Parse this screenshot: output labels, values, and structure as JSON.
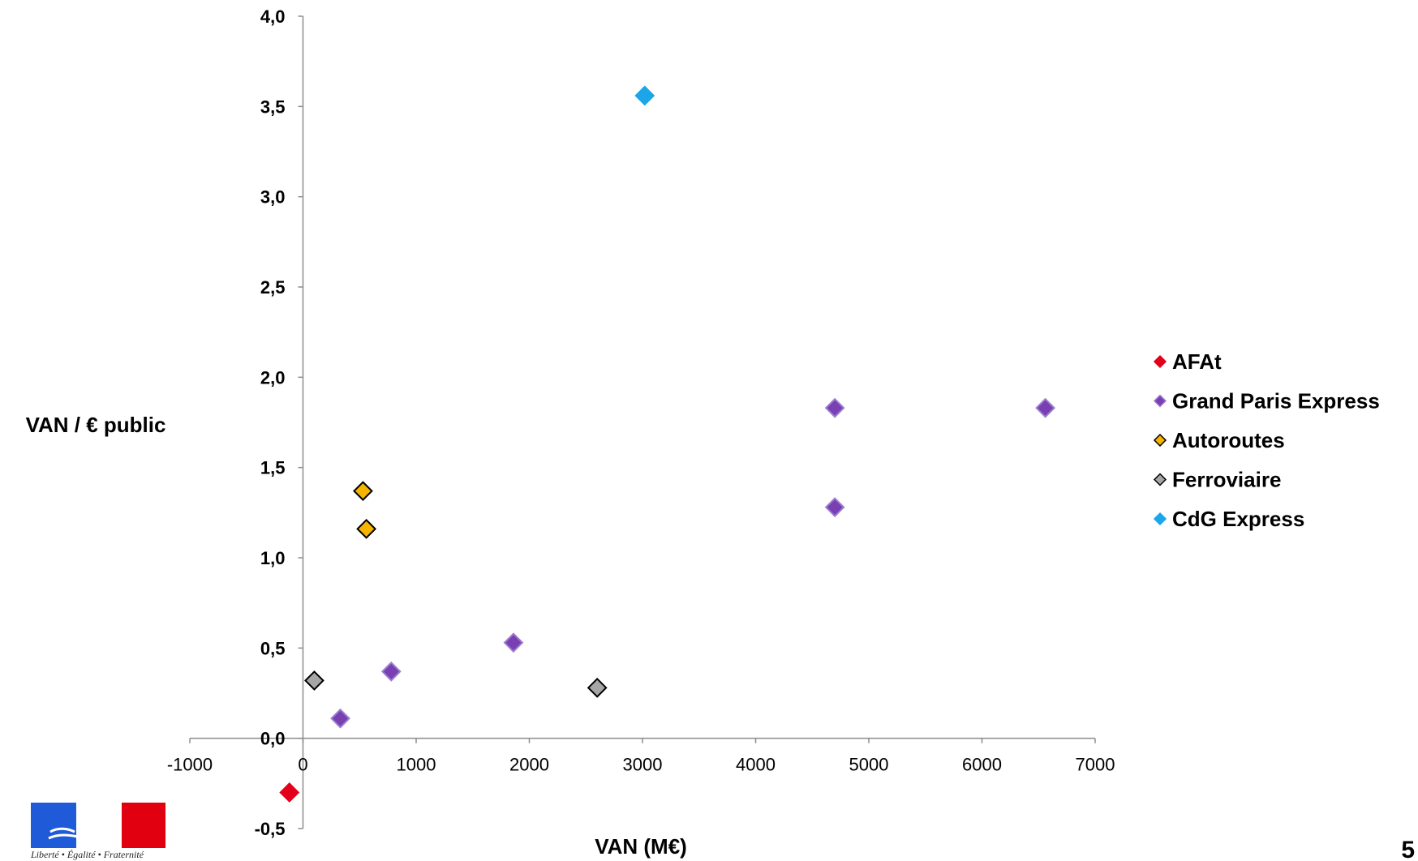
{
  "chart_data": {
    "type": "scatter",
    "title": "",
    "xlabel": "VAN (M€)",
    "ylabel": "VAN / € public",
    "xlim": [
      -1000,
      7000
    ],
    "ylim": [
      -0.5,
      4.0
    ],
    "x_ticks": [
      -1000,
      0,
      1000,
      2000,
      3000,
      4000,
      5000,
      6000,
      7000
    ],
    "y_ticks": [
      "-0,5",
      "0,0",
      "0,5",
      "1,0",
      "1,5",
      "2,0",
      "2,5",
      "3,0",
      "3,5",
      "4,0"
    ],
    "y_tick_values": [
      -0.5,
      0,
      0.5,
      1.0,
      1.5,
      2.0,
      2.5,
      3.0,
      3.5,
      4.0
    ],
    "grid": false,
    "legend_position": "right",
    "series": [
      {
        "name": "AFAt",
        "color": "#e3001b",
        "stroke": "#e3001b",
        "marker": "diamond",
        "points": [
          [
            -120,
            -0.3
          ]
        ]
      },
      {
        "name": "Grand Paris Express",
        "color": "#7a3fb2",
        "stroke": "#9b7fd0",
        "marker": "diamond",
        "points": [
          [
            330,
            0.11
          ],
          [
            780,
            0.37
          ],
          [
            1860,
            0.53
          ],
          [
            4700,
            1.28
          ],
          [
            4700,
            1.83
          ],
          [
            6560,
            1.83
          ]
        ]
      },
      {
        "name": "Autoroutes",
        "color": "#f5b400",
        "stroke": "#000000",
        "marker": "diamond",
        "points": [
          [
            530,
            1.37
          ],
          [
            560,
            1.16
          ]
        ]
      },
      {
        "name": "Ferroviaire",
        "color": "#a6a6a6",
        "stroke": "#000000",
        "marker": "diamond",
        "points": [
          [
            100,
            0.32
          ],
          [
            2600,
            0.28
          ]
        ]
      },
      {
        "name": "CdG Express",
        "color": "#1aa6e8",
        "stroke": "#1aa6e8",
        "marker": "diamond",
        "points": [
          [
            3020,
            3.56
          ]
        ]
      }
    ]
  },
  "logo": {
    "motto": "Liberté • Égalité • Fraternité",
    "colors": [
      "#1f5bd8",
      "#ffffff",
      "#e1000f"
    ]
  },
  "page_number": "5"
}
